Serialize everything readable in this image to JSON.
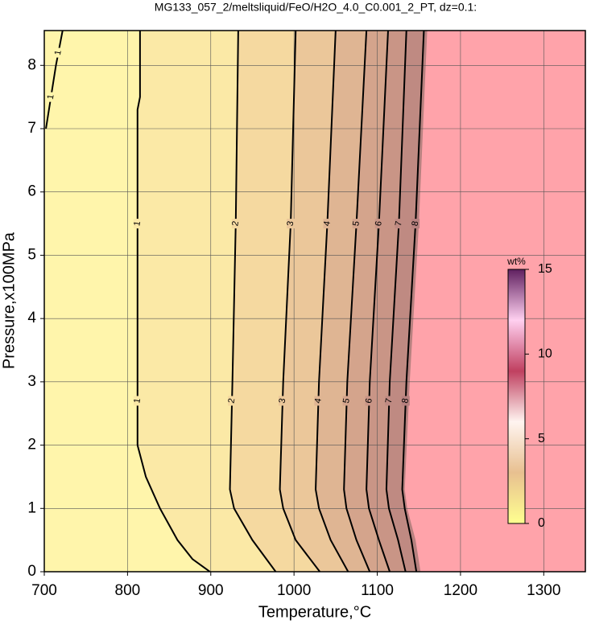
{
  "chart_data": {
    "type": "contour",
    "title": "MG133_057_2/meltsliquid/FeO/H2O_4.0_C0.001_2_PT, dz=0.1:",
    "x_label": "Temperature,°C",
    "y_label": "Pressure,x100MPa",
    "xlim": [
      700,
      1350
    ],
    "ylim": [
      0,
      8.55
    ],
    "xticks": [
      700,
      800,
      900,
      1000,
      1100,
      1200,
      1300
    ],
    "yticks": [
      0,
      1,
      2,
      3,
      4,
      5,
      6,
      7,
      8
    ],
    "grid": true,
    "background": "#fff5ab",
    "series": [
      {
        "name": "1",
        "color": "#fff5ab",
        "x": [
          702,
          714,
          722
        ],
        "y": [
          7.0,
          8.0,
          8.55
        ]
      },
      {
        "name": "1",
        "color": "#fbe9a6",
        "x": [
          899,
          878,
          860,
          839,
          822,
          812,
          812,
          815,
          815
        ],
        "y": [
          0,
          0.2,
          0.5,
          1,
          1.5,
          2,
          7.3,
          7.5,
          8.55
        ]
      },
      {
        "name": "2",
        "color": "#f5d9a0",
        "x": [
          978,
          950,
          928,
          923,
          926,
          930,
          933
        ],
        "y": [
          0,
          0.5,
          1,
          1.3,
          3,
          5.5,
          8.55
        ]
      },
      {
        "name": "3",
        "color": "#ebc79a",
        "x": [
          1031,
          1002,
          987,
          983,
          987,
          996,
          1002
        ],
        "y": [
          0,
          0.5,
          1,
          1.3,
          3,
          5.5,
          8.55
        ]
      },
      {
        "name": "4",
        "color": "#dfb593",
        "x": [
          1065,
          1044,
          1030,
          1026,
          1030,
          1040,
          1050
        ],
        "y": [
          0,
          0.5,
          1,
          1.3,
          3,
          5.5,
          8.55
        ]
      },
      {
        "name": "5",
        "color": "#d4a48c",
        "x": [
          1091,
          1075,
          1063,
          1060,
          1064,
          1075,
          1087
        ],
        "y": [
          0,
          0.5,
          1,
          1.3,
          3,
          5.5,
          8.55
        ]
      },
      {
        "name": "6",
        "color": "#c99586",
        "x": [
          1115,
          1102,
          1090,
          1087,
          1091,
          1102,
          1113
        ],
        "y": [
          0,
          0.5,
          1,
          1.3,
          3,
          5.5,
          8.55
        ]
      },
      {
        "name": "7",
        "color": "#bf8a82",
        "x": [
          1134,
          1125,
          1114,
          1111,
          1115,
          1126,
          1135
        ],
        "y": [
          0,
          0.5,
          1,
          1.3,
          3,
          5.5,
          8.55
        ]
      },
      {
        "name": "8",
        "color": "#b7817f",
        "x": [
          1147,
          1141,
          1133,
          1130,
          1135,
          1146,
          1156
        ],
        "y": [
          0,
          0.5,
          1,
          1.3,
          3,
          5.5,
          8.55
        ]
      }
    ],
    "region": {
      "color": "#ffa3aa",
      "x": [
        1152,
        1146,
        1136,
        1133,
        1139,
        1150,
        1160
      ],
      "y": [
        0,
        0.5,
        1,
        1.3,
        3,
        5.5,
        8.55
      ]
    },
    "colorbar": {
      "label": "wt%",
      "lim": [
        0,
        15
      ],
      "ticks": [
        0,
        5,
        10,
        15
      ],
      "colors": [
        "#ffff90",
        "#e8c090",
        "#fff4f0",
        "#c04060",
        "#ffd0f0",
        "#602060"
      ]
    }
  }
}
